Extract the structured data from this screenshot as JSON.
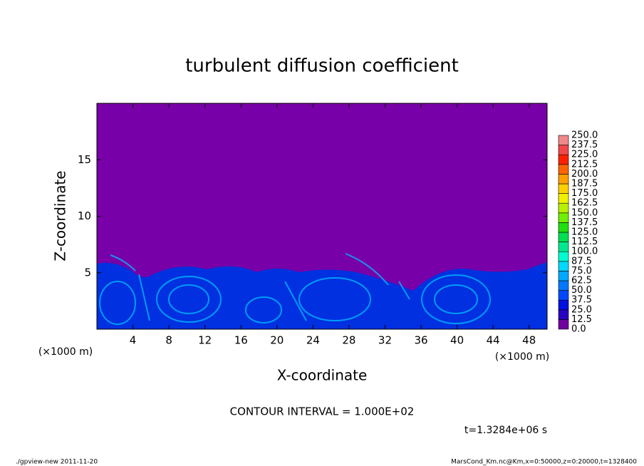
{
  "chart_data": {
    "type": "contour",
    "title": "turbulent diffusion coefficient",
    "xlabel": "X-coordinate",
    "ylabel": "Z-coordinate",
    "x_unit_label": "(×1000 m)",
    "y_unit_label": "(×1000 m)",
    "xlim": [
      0,
      50
    ],
    "ylim": [
      0,
      20
    ],
    "xticks": [
      4,
      8,
      12,
      16,
      20,
      24,
      28,
      32,
      36,
      40,
      44,
      48
    ],
    "yticks": [
      5,
      10,
      15
    ],
    "colorbar": {
      "levels": [
        {
          "value": 0,
          "label": "0.0"
        },
        {
          "value": 12.5,
          "label": "12.5"
        },
        {
          "value": 25,
          "label": "25.0"
        },
        {
          "value": 37.5,
          "label": "37.5"
        },
        {
          "value": 50,
          "label": "50.0"
        },
        {
          "value": 62.5,
          "label": "62.5"
        },
        {
          "value": 75,
          "label": "75.0"
        },
        {
          "value": 87.5,
          "label": "87.5"
        },
        {
          "value": 100,
          "label": "100.0"
        },
        {
          "value": 112.5,
          "label": "112.5"
        },
        {
          "value": 125,
          "label": "125.0"
        },
        {
          "value": 137.5,
          "label": "137.5"
        },
        {
          "value": 150,
          "label": "150.0"
        },
        {
          "value": 162.5,
          "label": "162.5"
        },
        {
          "value": 175,
          "label": "175.0"
        },
        {
          "value": 187.5,
          "label": "187.5"
        },
        {
          "value": 200,
          "label": "200.0"
        },
        {
          "value": 212.5,
          "label": "212.5"
        },
        {
          "value": 225,
          "label": "225.0"
        },
        {
          "value": 237.5,
          "label": "237.5"
        },
        {
          "value": 250,
          "label": "250.0"
        }
      ],
      "colors": [
        "#7000a0",
        "#2800c0",
        "#0010e0",
        "#0048ff",
        "#0078ff",
        "#00a8ff",
        "#00d8ff",
        "#00ffd0",
        "#00e890",
        "#00e050",
        "#20e010",
        "#70f000",
        "#b8f000",
        "#f0f000",
        "#ffd000",
        "#ffa000",
        "#ff6400",
        "#ff2000",
        "#f04848",
        "#f08888"
      ]
    },
    "contour_interval": "CONTOUR INTERVAL = 1.000E+02",
    "time_label": "t=1.3284e+06 s",
    "footer_left": "./gpview-new   2011-11-20",
    "footer_right": "MarsCond_Km.nc@Km,x=0:50000,z=0:20000,t=1328400"
  }
}
